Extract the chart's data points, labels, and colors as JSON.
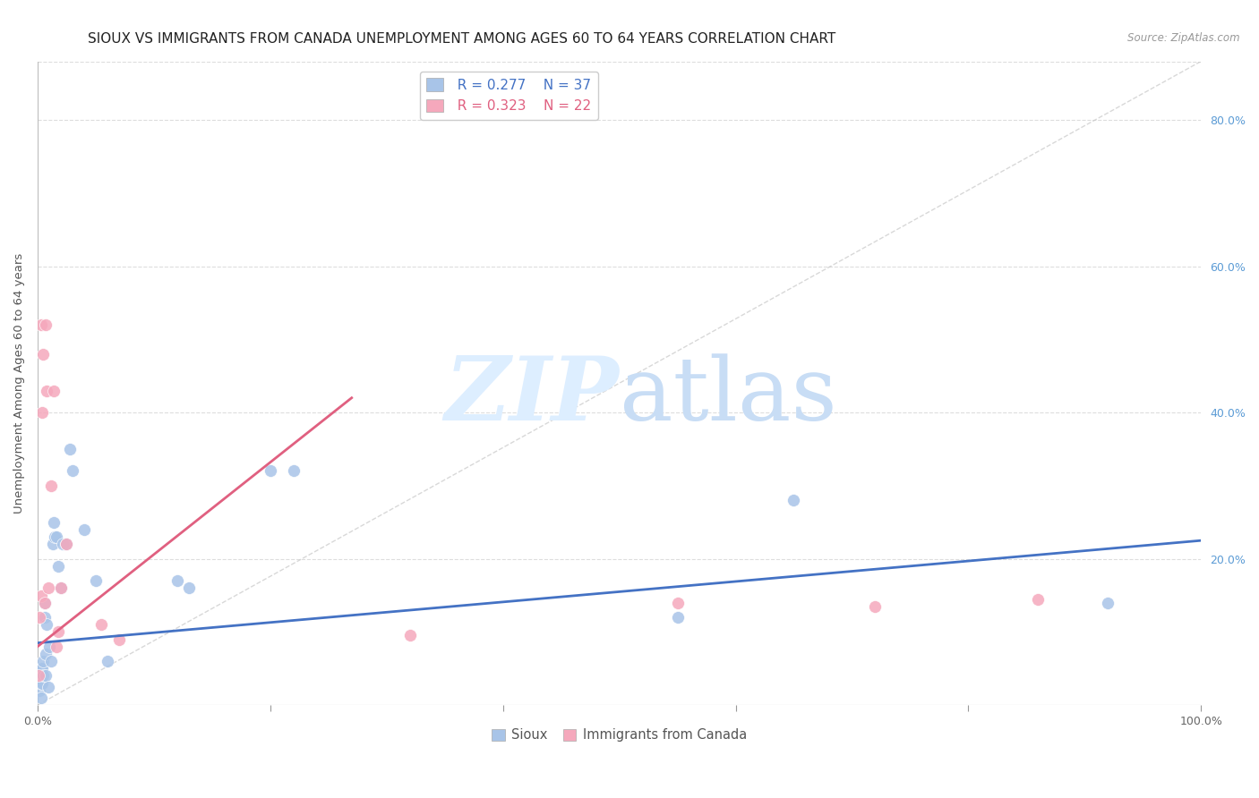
{
  "title": "SIOUX VS IMMIGRANTS FROM CANADA UNEMPLOYMENT AMONG AGES 60 TO 64 YEARS CORRELATION CHART",
  "source": "Source: ZipAtlas.com",
  "ylabel": "Unemployment Among Ages 60 to 64 years",
  "xlim": [
    0,
    1.0
  ],
  "ylim": [
    0,
    0.88
  ],
  "background_color": "#ffffff",
  "legend_R1": "R = 0.277",
  "legend_N1": "N = 37",
  "legend_R2": "R = 0.323",
  "legend_N2": "N = 22",
  "sioux_color": "#a8c4e8",
  "canada_color": "#f5a8bc",
  "sioux_line_color": "#4472c4",
  "canada_line_color": "#e06080",
  "diagonal_color": "#c8c8c8",
  "sioux_points_x": [
    0.002,
    0.002,
    0.003,
    0.003,
    0.003,
    0.004,
    0.004,
    0.005,
    0.005,
    0.006,
    0.006,
    0.007,
    0.007,
    0.008,
    0.009,
    0.01,
    0.012,
    0.013,
    0.014,
    0.015,
    0.016,
    0.018,
    0.02,
    0.022,
    0.025,
    0.028,
    0.03,
    0.04,
    0.05,
    0.06,
    0.12,
    0.13,
    0.2,
    0.22,
    0.55,
    0.65,
    0.92
  ],
  "sioux_points_y": [
    0.02,
    0.04,
    0.05,
    0.03,
    0.01,
    0.05,
    0.03,
    0.06,
    0.04,
    0.14,
    0.12,
    0.07,
    0.04,
    0.11,
    0.025,
    0.08,
    0.06,
    0.22,
    0.25,
    0.23,
    0.23,
    0.19,
    0.16,
    0.22,
    0.22,
    0.35,
    0.32,
    0.24,
    0.17,
    0.06,
    0.17,
    0.16,
    0.32,
    0.32,
    0.12,
    0.28,
    0.14
  ],
  "canada_points_x": [
    0.001,
    0.002,
    0.003,
    0.003,
    0.004,
    0.005,
    0.006,
    0.007,
    0.008,
    0.009,
    0.012,
    0.014,
    0.016,
    0.018,
    0.02,
    0.025,
    0.055,
    0.07,
    0.32,
    0.55,
    0.72,
    0.86
  ],
  "canada_points_y": [
    0.04,
    0.12,
    0.15,
    0.52,
    0.4,
    0.48,
    0.14,
    0.52,
    0.43,
    0.16,
    0.3,
    0.43,
    0.08,
    0.1,
    0.16,
    0.22,
    0.11,
    0.09,
    0.095,
    0.14,
    0.135,
    0.145
  ],
  "sioux_trend_x": [
    0.0,
    1.0
  ],
  "sioux_trend_y": [
    0.085,
    0.225
  ],
  "canada_trend_x": [
    0.0,
    0.27
  ],
  "canada_trend_y": [
    0.08,
    0.42
  ],
  "marker_size": 100,
  "title_fontsize": 11,
  "axis_fontsize": 9.5,
  "tick_fontsize": 9
}
